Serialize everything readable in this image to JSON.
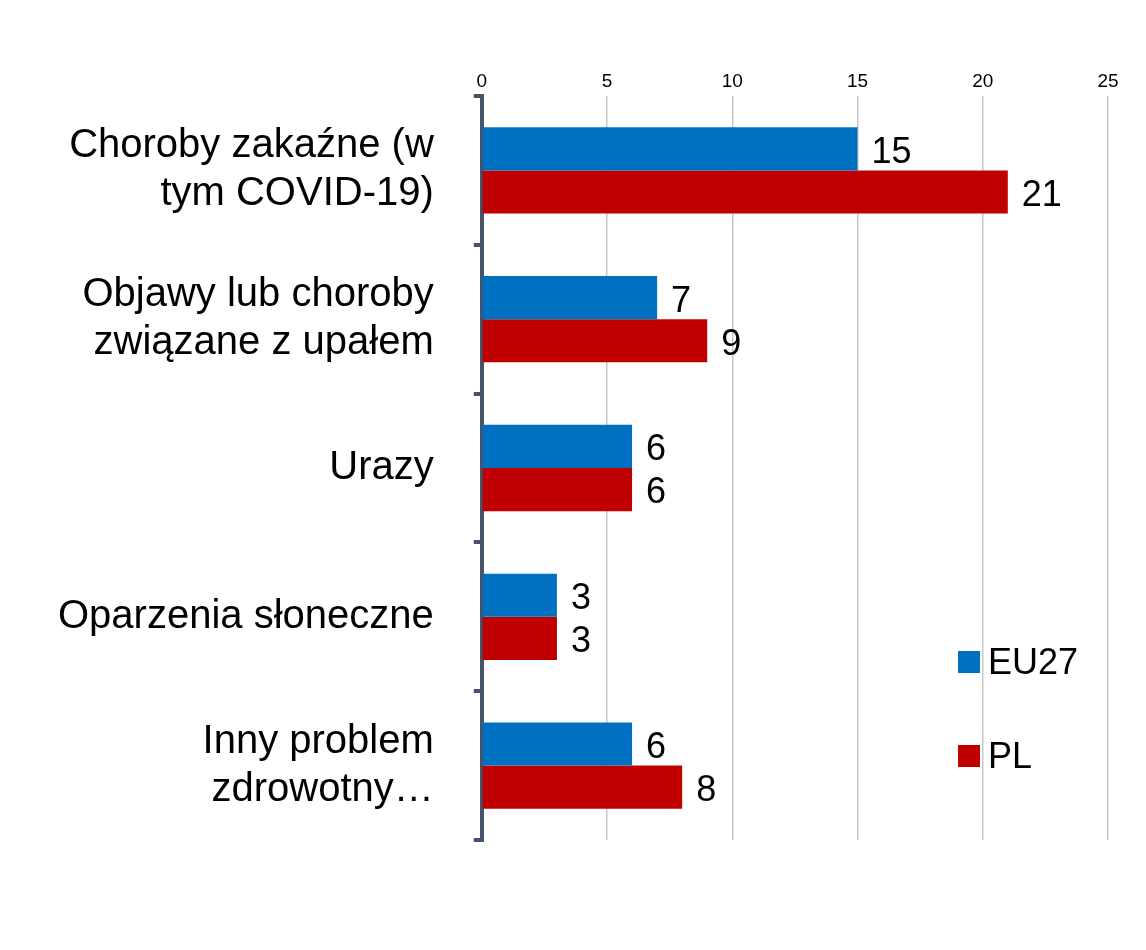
{
  "chart_data": {
    "type": "bar",
    "orientation": "horizontal",
    "categories": [
      "Choroby zakaźne (w tym COVID-19)",
      "Objawy lub choroby związane z upałem",
      "Urazy",
      "Oparzenia słoneczne",
      "Inny problem zdrowotny…"
    ],
    "series": [
      {
        "name": "EU27",
        "color": "#0070c0",
        "values": [
          15,
          7,
          6,
          3,
          6
        ]
      },
      {
        "name": "PL",
        "color": "#c00000",
        "values": [
          21,
          9,
          6,
          3,
          8
        ]
      }
    ],
    "xlim": [
      0,
      25
    ],
    "xticks": [
      0,
      5,
      10,
      15,
      20,
      25
    ],
    "grid": "x",
    "legend": "bottom right",
    "data_labels": true
  }
}
